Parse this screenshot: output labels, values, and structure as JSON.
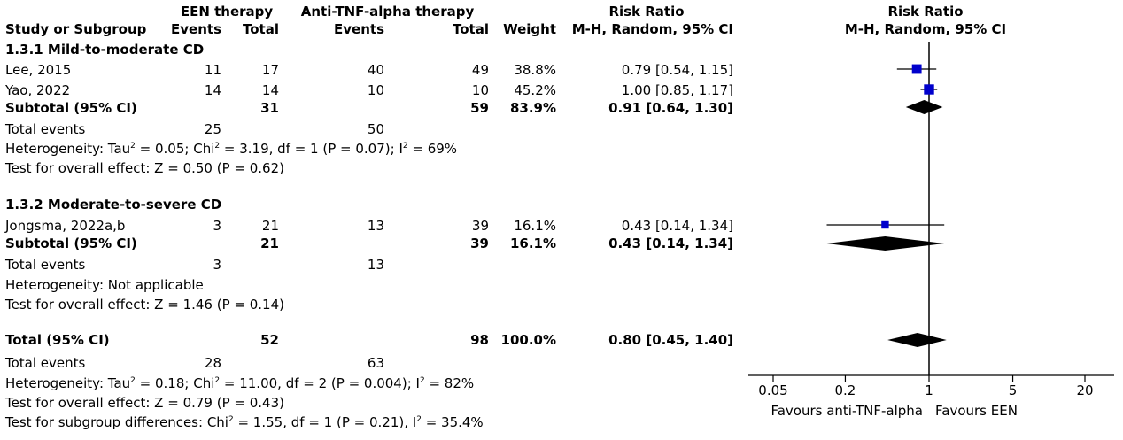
{
  "header": {
    "een_group": "EEN therapy",
    "tnf_group": "Anti-TNF-alpha therapy",
    "rr_title": "Risk Ratio",
    "rr_method": "M-H, Random, 95% CI",
    "plot_title": "Risk Ratio",
    "plot_method": "M-H, Random, 95% CI",
    "col_study": "Study or Subgroup",
    "col_events": "Events",
    "col_total": "Total",
    "col_weight": "Weight"
  },
  "subgroup1": {
    "title": "1.3.1 Mild-to-moderate CD",
    "rows": [
      {
        "study": "Lee, 2015",
        "een_events": "11",
        "een_total": "17",
        "tnf_events": "40",
        "tnf_total": "49",
        "weight": "38.8%",
        "rr": "0.79 [0.54, 1.15]"
      },
      {
        "study": "Yao, 2022",
        "een_events": "14",
        "een_total": "14",
        "tnf_events": "10",
        "tnf_total": "10",
        "weight": "45.2%",
        "rr": "1.00 [0.85, 1.17]"
      }
    ],
    "subtotal_label": "Subtotal (95% CI)",
    "subtotal_een_total": "31",
    "subtotal_tnf_total": "59",
    "subtotal_weight": "83.9%",
    "subtotal_rr": "0.91 [0.64, 1.30]",
    "events_label": "Total events",
    "events_een": "25",
    "events_tnf": "50",
    "het_prefix": "Heterogeneity: Tau",
    "het_mid": " = 0.05; Chi",
    "het_mid2": " = 3.19, df = 1 (P = 0.07); I",
    "het_end": " = 69%",
    "overall": "Test for overall effect: Z = 0.50 (P = 0.62)"
  },
  "subgroup2": {
    "title": "1.3.2 Moderate-to-severe CD",
    "rows": [
      {
        "study": "Jongsma, 2022a,b",
        "een_events": "3",
        "een_total": "21",
        "tnf_events": "13",
        "tnf_total": "39",
        "weight": "16.1%",
        "rr": "0.43 [0.14, 1.34]"
      }
    ],
    "subtotal_label": "Subtotal (95% CI)",
    "subtotal_een_total": "21",
    "subtotal_tnf_total": "39",
    "subtotal_weight": "16.1%",
    "subtotal_rr": "0.43 [0.14, 1.34]",
    "events_label": "Total events",
    "events_een": "3",
    "events_tnf": "13",
    "het": "Heterogeneity: Not applicable",
    "overall": "Test for overall effect: Z = 1.46 (P = 0.14)"
  },
  "total": {
    "label": "Total (95% CI)",
    "een_total": "52",
    "tnf_total": "98",
    "weight": "100.0%",
    "rr": "0.80 [0.45, 1.40]",
    "events_label": "Total events",
    "events_een": "28",
    "events_tnf": "63",
    "het_prefix": "Heterogeneity: Tau",
    "het_mid": " = 0.18; Chi",
    "het_mid2": " = 11.00, df = 2 (P = 0.004); I",
    "het_end": " = 82%",
    "overall": "Test for overall effect: Z = 0.79 (P = 0.43)",
    "subgroup_prefix": "Test for subgroup differences: Chi",
    "subgroup_mid": " = 1.55, df = 1 (P = 0.21), I",
    "subgroup_end": " = 35.4%"
  },
  "sup2": "2",
  "axis": {
    "ticks": [
      "0.05",
      "0.2",
      "1",
      "5",
      "20"
    ],
    "favours_left": "Favours anti-TNF-alpha",
    "favours_right": "Favours EEN"
  },
  "colors": {
    "marker": "#0000cc",
    "diamond": "#000000",
    "line": "#000000"
  },
  "chart_data": {
    "type": "forest",
    "scale": "log",
    "xlim": [
      0.05,
      20
    ],
    "null_value": 1,
    "ticks": [
      0.05,
      0.2,
      1,
      5,
      20
    ],
    "studies": [
      {
        "label": "Lee, 2015",
        "rr": 0.79,
        "ci": [
          0.54,
          1.15
        ],
        "weight": 38.8
      },
      {
        "label": "Yao, 2022",
        "rr": 1.0,
        "ci": [
          0.85,
          1.17
        ],
        "weight": 45.2
      },
      {
        "label": "Jongsma, 2022a,b",
        "rr": 0.43,
        "ci": [
          0.14,
          1.34
        ],
        "weight": 16.1
      }
    ],
    "pooled": [
      {
        "label": "Subtotal 1.3.1",
        "rr": 0.91,
        "ci": [
          0.64,
          1.3
        ]
      },
      {
        "label": "Subtotal 1.3.2",
        "rr": 0.43,
        "ci": [
          0.14,
          1.34
        ]
      },
      {
        "label": "Total",
        "rr": 0.8,
        "ci": [
          0.45,
          1.4
        ]
      }
    ]
  }
}
